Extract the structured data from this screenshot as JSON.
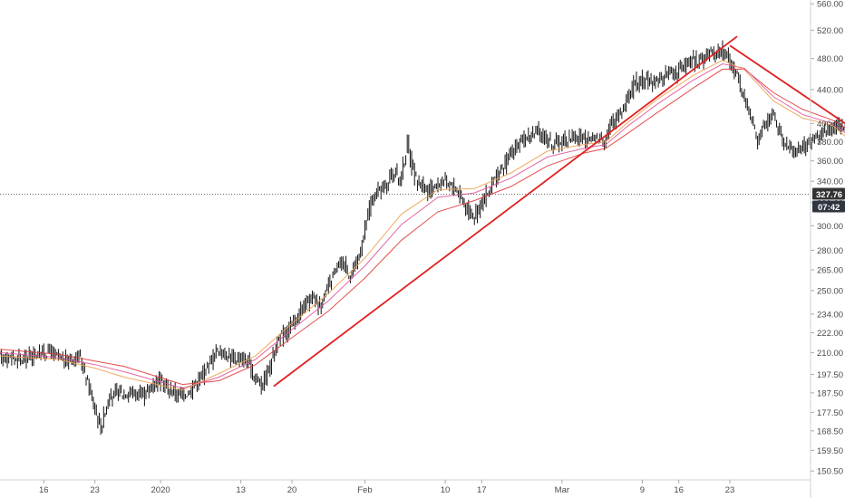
{
  "chart_data": {
    "type": "candlestick",
    "scale": "log",
    "grid": false,
    "y_ticks": [
      "560.00",
      "520.00",
      "480.00",
      "440.00",
      "400.00",
      "380.00",
      "360.00",
      "340.00",
      "320.00",
      "300.00",
      "280.00",
      "265.00",
      "250.00",
      "234.00",
      "222.00",
      "210.00",
      "197.50",
      "187.50",
      "177.50",
      "168.50",
      "159.50",
      "150.50"
    ],
    "x_ticks": [
      "16",
      "23",
      "2020",
      "13",
      "20",
      "Feb",
      "10",
      "17",
      "Mar",
      "9",
      "16",
      "23"
    ],
    "price_series": [
      [
        0,
        208
      ],
      [
        3,
        206
      ],
      [
        5,
        209
      ],
      [
        7,
        211
      ],
      [
        8,
        207
      ],
      [
        9,
        205
      ],
      [
        11,
        208
      ],
      [
        12,
        196
      ],
      [
        13,
        182
      ],
      [
        14,
        170
      ],
      [
        15,
        184
      ],
      [
        16,
        187
      ],
      [
        18,
        188
      ],
      [
        19,
        187
      ],
      [
        20,
        186
      ],
      [
        21,
        192
      ],
      [
        22,
        195
      ],
      [
        23,
        190
      ],
      [
        25,
        186
      ],
      [
        26,
        188
      ],
      [
        28,
        198
      ],
      [
        29,
        205
      ],
      [
        30,
        212
      ],
      [
        31,
        209
      ],
      [
        32,
        207
      ],
      [
        34,
        205
      ],
      [
        35,
        197
      ],
      [
        36,
        192
      ],
      [
        37,
        200
      ],
      [
        38,
        215
      ],
      [
        39,
        221
      ],
      [
        40,
        226
      ],
      [
        41,
        232
      ],
      [
        42,
        240
      ],
      [
        43,
        246
      ],
      [
        44,
        240
      ],
      [
        45,
        250
      ],
      [
        46,
        262
      ],
      [
        47,
        272
      ],
      [
        48,
        262
      ],
      [
        49,
        268
      ],
      [
        50,
        292
      ],
      [
        51,
        320
      ],
      [
        52,
        330
      ],
      [
        53,
        336
      ],
      [
        54,
        350
      ],
      [
        55,
        340
      ],
      [
        56,
        376
      ],
      [
        57,
        342
      ],
      [
        58,
        336
      ],
      [
        59,
        330
      ],
      [
        60,
        337
      ],
      [
        61,
        340
      ],
      [
        62,
        336
      ],
      [
        63,
        330
      ],
      [
        64,
        316
      ],
      [
        65,
        308
      ],
      [
        66,
        318
      ],
      [
        67,
        328
      ],
      [
        68,
        341
      ],
      [
        69,
        350
      ],
      [
        70,
        368
      ],
      [
        71,
        373
      ],
      [
        72,
        384
      ],
      [
        73,
        388
      ],
      [
        74,
        390
      ],
      [
        75,
        383
      ],
      [
        76,
        377
      ],
      [
        77,
        380
      ],
      [
        78,
        384
      ],
      [
        79,
        386
      ],
      [
        80,
        382
      ],
      [
        81,
        382
      ],
      [
        82,
        385
      ],
      [
        83,
        383
      ],
      [
        84,
        400
      ],
      [
        85,
        412
      ],
      [
        86,
        425
      ],
      [
        87,
        448
      ],
      [
        88,
        452
      ],
      [
        89,
        449
      ],
      [
        90,
        451
      ],
      [
        91,
        455
      ],
      [
        92,
        462
      ],
      [
        93,
        462
      ],
      [
        94,
        472
      ],
      [
        95,
        476
      ],
      [
        96,
        478
      ],
      [
        97,
        484
      ],
      [
        98,
        488
      ],
      [
        99,
        493
      ],
      [
        100,
        478
      ],
      [
        101,
        462
      ],
      [
        102,
        432
      ],
      [
        103,
        410
      ],
      [
        104,
        383
      ],
      [
        105,
        398
      ],
      [
        106,
        412
      ],
      [
        107,
        388
      ],
      [
        108,
        375
      ],
      [
        109,
        370
      ],
      [
        110,
        372
      ],
      [
        111,
        380
      ],
      [
        112,
        384
      ],
      [
        113,
        390
      ],
      [
        114,
        396
      ],
      [
        115,
        400
      ],
      [
        116,
        392
      ],
      [
        117,
        380
      ],
      [
        118,
        368
      ],
      [
        119,
        356
      ],
      [
        120,
        338
      ],
      [
        121,
        326
      ],
      [
        122,
        314
      ],
      [
        123,
        304
      ],
      [
        124,
        312
      ],
      [
        125,
        308
      ],
      [
        126,
        306
      ],
      [
        127,
        312
      ],
      [
        128,
        318
      ],
      [
        129,
        332
      ],
      [
        130,
        336
      ],
      [
        131,
        330
      ]
    ],
    "moving_averages": [
      {
        "color": "#e03a3a",
        "values": [
          [
            0,
            212
          ],
          [
            8,
            209
          ],
          [
            13,
            205
          ],
          [
            17,
            202
          ],
          [
            25,
            192
          ],
          [
            30,
            194
          ],
          [
            35,
            203
          ],
          [
            40,
            219
          ],
          [
            45,
            236
          ],
          [
            50,
            259
          ],
          [
            55,
            288
          ],
          [
            60,
            312
          ],
          [
            65,
            322
          ],
          [
            70,
            335
          ],
          [
            75,
            355
          ],
          [
            80,
            368
          ],
          [
            83,
            373
          ],
          [
            86,
            389
          ],
          [
            90,
            412
          ],
          [
            95,
            442
          ],
          [
            99,
            466
          ],
          [
            102,
            466
          ],
          [
            106,
            436
          ],
          [
            110,
            416
          ],
          [
            114,
            404
          ],
          [
            118,
            385
          ],
          [
            122,
            358
          ],
          [
            126,
            337
          ],
          [
            131,
            331
          ]
        ]
      },
      {
        "color": "#e0569a",
        "values": [
          [
            0,
            210
          ],
          [
            8,
            207
          ],
          [
            13,
            203
          ],
          [
            17,
            199
          ],
          [
            25,
            190
          ],
          [
            30,
            196
          ],
          [
            35,
            206
          ],
          [
            40,
            224
          ],
          [
            45,
            243
          ],
          [
            50,
            268
          ],
          [
            55,
            301
          ],
          [
            60,
            325
          ],
          [
            65,
            329
          ],
          [
            70,
            343
          ],
          [
            75,
            364
          ],
          [
            80,
            373
          ],
          [
            83,
            377
          ],
          [
            86,
            397
          ],
          [
            90,
            422
          ],
          [
            95,
            452
          ],
          [
            99,
            473
          ],
          [
            102,
            467
          ],
          [
            106,
            431
          ],
          [
            110,
            410
          ],
          [
            114,
            400
          ],
          [
            118,
            377
          ],
          [
            122,
            349
          ],
          [
            126,
            331
          ],
          [
            131,
            330
          ]
        ]
      },
      {
        "color": "#f0a050",
        "values": [
          [
            0,
            208
          ],
          [
            8,
            206
          ],
          [
            13,
            201
          ],
          [
            17,
            196
          ],
          [
            25,
            189
          ],
          [
            30,
            198
          ],
          [
            35,
            208
          ],
          [
            40,
            228
          ],
          [
            45,
            248
          ],
          [
            50,
            274
          ],
          [
            55,
            310
          ],
          [
            60,
            332
          ],
          [
            65,
            333
          ],
          [
            70,
            348
          ],
          [
            75,
            370
          ],
          [
            80,
            377
          ],
          [
            83,
            380
          ],
          [
            86,
            401
          ],
          [
            90,
            428
          ],
          [
            95,
            458
          ],
          [
            99,
            478
          ],
          [
            102,
            465
          ],
          [
            106,
            426
          ],
          [
            110,
            406
          ],
          [
            114,
            398
          ],
          [
            118,
            372
          ],
          [
            122,
            344
          ],
          [
            126,
            328
          ],
          [
            131,
            329
          ]
        ]
      }
    ],
    "trendlines": [
      {
        "color": "#e02020",
        "points": [
          [
            37.5,
            191
          ],
          [
            101,
            511
          ]
        ]
      },
      {
        "color": "#e02020",
        "points": [
          [
            100,
            498
          ],
          [
            139,
            290
          ]
        ]
      }
    ],
    "last_price": {
      "label": "327.76",
      "value": 327.76,
      "color": "#333333"
    },
    "countdown": {
      "label": "07:42",
      "color": "#2f3640"
    }
  }
}
